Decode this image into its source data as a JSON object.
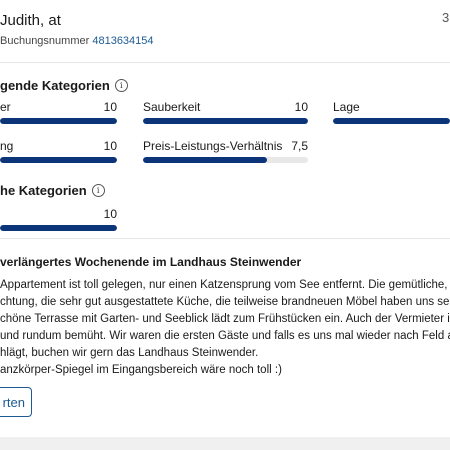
{
  "header": {
    "name": "Judith, at",
    "corner_number": "3",
    "booking_label": "Buchungsnummer",
    "booking_number": "4813634154"
  },
  "top_categories": {
    "title": "gende Kategorien",
    "info_icon": "info-icon",
    "items": [
      {
        "label": "er",
        "score": "10",
        "fill": 1.0
      },
      {
        "label": "Sauberkeit",
        "score": "10",
        "fill": 1.0
      },
      {
        "label": "Lage",
        "score": "",
        "fill": 1.0
      },
      {
        "label": "ng",
        "score": "10",
        "fill": 1.0
      },
      {
        "label": "Preis-Leistungs-Verhältnis",
        "score": "7,5",
        "fill": 0.75
      }
    ]
  },
  "other_categories": {
    "title": "he Kategorien",
    "info_icon": "info-icon",
    "items": [
      {
        "label": "",
        "score": "10",
        "fill": 1.0
      }
    ]
  },
  "review": {
    "title": "verlängertes Wochenende im Landhaus Steinwender",
    "lines": [
      "Appartement ist toll gelegen, nur einen Katzensprung vom See entfernt. Die gemütliche, stil",
      "chtung, die sehr gut ausgestattete Küche, die teilweise brandneuen Möbel haben uns sehr g",
      "chöne Terrasse mit Garten- und Seeblick lädt zum Frühstücken ein. Auch der Vermieter ist e",
      "und rundum bemüht. Wir waren die ersten Gäste und falls es uns mal wieder nach Feld am",
      "hlägt, buchen wir gern das Landhaus Steinwender.",
      "anzkörper-Spiegel im Eingangsbereich wäre noch toll :)"
    ]
  },
  "reply_button": {
    "label": "rten"
  },
  "colors": {
    "bar_fill": "#0b3479",
    "bar_track": "#e8e8e8",
    "link": "#1d5a93"
  }
}
